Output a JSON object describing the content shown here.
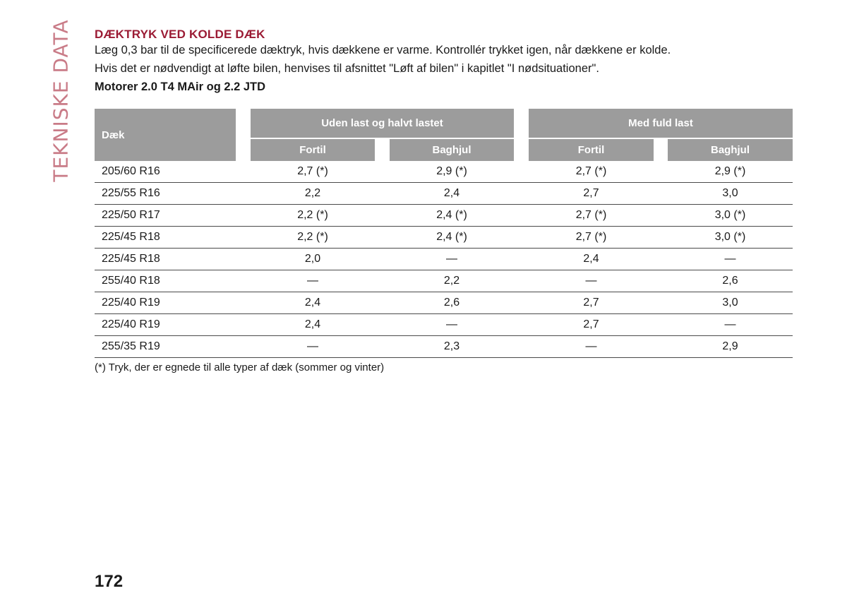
{
  "side_title": "TEKNISKE DATA",
  "section_heading": "DÆKTRYK VED KOLDE DÆK",
  "paragraphs": [
    "Læg 0,3 bar til de specificerede dæktryk, hvis dækkene er varme. Kontrollér trykket igen, når dækkene er kolde.",
    "Hvis det er nødvendigt at løfte bilen, henvises til afsnittet \"Løft af bilen\" i kapitlet \"I nødsituationer\"."
  ],
  "subheading": "Motorer 2.0 T4 MAir og 2.2 JTD",
  "table": {
    "header_tire": "Dæk",
    "group_1": "Uden last og halvt lastet",
    "group_2": "Med fuld last",
    "sub_front": "Fortil",
    "sub_rear": "Baghjul",
    "rows": [
      [
        "205/60 R16",
        "2,7 (*)",
        "2,9 (*)",
        "2,7 (*)",
        "2,9 (*)"
      ],
      [
        "225/55 R16",
        "2,2",
        "2,4",
        "2,7",
        "3,0"
      ],
      [
        "225/50 R17",
        "2,2 (*)",
        "2,4 (*)",
        "2,7 (*)",
        "3,0 (*)"
      ],
      [
        "225/45 R18",
        "2,2 (*)",
        "2,4 (*)",
        "2,7 (*)",
        "3,0 (*)"
      ],
      [
        "225/45 R18",
        "2,0",
        "—",
        "2,4",
        "—"
      ],
      [
        "255/40 R18",
        "—",
        "2,2",
        "—",
        "2,6"
      ],
      [
        "225/40 R19",
        "2,4",
        "2,6",
        "2,7",
        "3,0"
      ],
      [
        "225/40 R19",
        "2,4",
        "—",
        "2,7",
        "—"
      ],
      [
        "255/35 R19",
        "—",
        "2,3",
        "—",
        "2,9"
      ]
    ]
  },
  "footnote": "(*) Tryk, der er egnede til alle typer af dæk (sommer og vinter)",
  "page_number": "172"
}
